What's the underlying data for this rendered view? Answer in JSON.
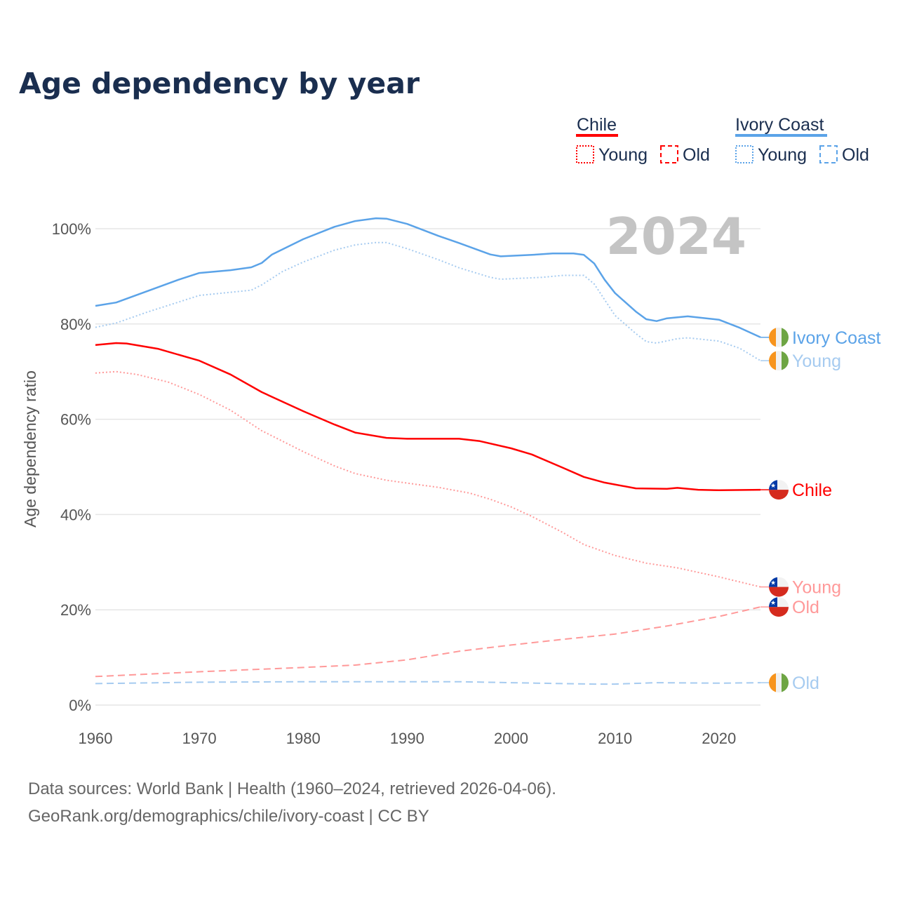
{
  "title": "Age dependency by year",
  "year_label": "2024",
  "legend": {
    "groups": [
      {
        "name": "Chile",
        "color": "#ff0000",
        "young": "Young",
        "old": "Old"
      },
      {
        "name": "Ivory Coast",
        "color": "#5ba3e8",
        "young": "Young",
        "old": "Old"
      }
    ]
  },
  "footer": {
    "line1": "Data sources: World Bank | Health (1960–2024, retrieved 2026-04-06).",
    "line2": "GeoRank.org/demographics/chile/ivory-coast | CC BY"
  },
  "chart_data": {
    "type": "line",
    "title": "Age dependency by year",
    "xlabel": "",
    "ylabel": "Age dependency ratio",
    "xlim": [
      1960,
      2024
    ],
    "ylim": [
      0,
      100
    ],
    "x_ticks": [
      "1960",
      "1970",
      "1980",
      "1990",
      "2000",
      "2010",
      "2020"
    ],
    "y_ticks": [
      "0%",
      "20%",
      "40%",
      "60%",
      "80%",
      "100%"
    ],
    "series": [
      {
        "name": "Ivory Coast",
        "end_label": "Ivory Coast",
        "country": "ivory",
        "color": "#5ba3e8",
        "style": "solid",
        "x": [
          1960,
          1962,
          1965,
          1968,
          1970,
          1973,
          1975,
          1976,
          1977,
          1980,
          1983,
          1985,
          1987,
          1988,
          1990,
          1993,
          1995,
          1998,
          1999,
          2002,
          2004,
          2006,
          2007,
          2008,
          2009,
          2010,
          2012,
          2013,
          2014,
          2015,
          2017,
          2020,
          2022,
          2024
        ],
        "y": [
          83.8,
          84.5,
          86.9,
          89.3,
          90.7,
          91.3,
          91.9,
          92.8,
          94.6,
          97.8,
          100.4,
          101.6,
          102.2,
          102.1,
          101,
          98.5,
          97,
          94.6,
          94.2,
          94.5,
          94.8,
          94.8,
          94.5,
          92.7,
          89.3,
          86.5,
          82.6,
          81.0,
          80.6,
          81.2,
          81.6,
          80.9,
          79.2,
          77.2
        ]
      },
      {
        "name": "Ivory Coast Young",
        "end_label": "Young",
        "country": "ivory",
        "color": "#a6cbf0",
        "style": "dotted",
        "x": [
          1960,
          1962,
          1965,
          1970,
          1975,
          1976,
          1978,
          1980,
          1983,
          1985,
          1987,
          1988,
          1990,
          1993,
          1995,
          1998,
          1999,
          2003,
          2005,
          2007,
          2008,
          2010,
          2012,
          2013,
          2014,
          2016,
          2017,
          2020,
          2022,
          2024
        ],
        "y": [
          79.3,
          80.2,
          82.5,
          86,
          87.1,
          88.2,
          91,
          93,
          95.5,
          96.6,
          97.1,
          97.1,
          95.8,
          93.5,
          91.8,
          89.8,
          89.4,
          89.8,
          90.2,
          90.2,
          88.4,
          81.8,
          78,
          76.3,
          76,
          76.9,
          77.1,
          76.4,
          74.9,
          72.3
        ]
      },
      {
        "name": "Chile",
        "end_label": "Chile",
        "country": "chile",
        "color": "#ff0000",
        "style": "solid",
        "x": [
          1960,
          1962,
          1963,
          1966,
          1970,
          1973,
          1976,
          1980,
          1983,
          1985,
          1988,
          1990,
          1995,
          1997,
          2000,
          2002,
          2005,
          2007,
          2009,
          2012,
          2015,
          2016,
          2018,
          2020,
          2024
        ],
        "y": [
          75.6,
          76.0,
          75.9,
          74.8,
          72.3,
          69.4,
          65.7,
          61.7,
          58.9,
          57.2,
          56.1,
          55.9,
          55.9,
          55.4,
          53.9,
          52.6,
          49.8,
          47.9,
          46.7,
          45.5,
          45.4,
          45.6,
          45.2,
          45.1,
          45.2
        ]
      },
      {
        "name": "Chile Young",
        "end_label": "Young",
        "country": "chile",
        "color": "#ff9999",
        "style": "dotted",
        "x": [
          1960,
          1962,
          1964,
          1967,
          1970,
          1973,
          1976,
          1980,
          1983,
          1985,
          1988,
          1990,
          1993,
          1996,
          1998,
          2000,
          2002,
          2005,
          2007,
          2010,
          2013,
          2016,
          2020,
          2024
        ],
        "y": [
          69.7,
          70,
          69.4,
          67.8,
          65.2,
          61.9,
          57.6,
          53.2,
          50.2,
          48.6,
          47.2,
          46.6,
          45.7,
          44.5,
          43.2,
          41.6,
          39.6,
          36.2,
          33.7,
          31.4,
          29.8,
          28.8,
          26.9,
          24.8
        ]
      },
      {
        "name": "Chile Old",
        "end_label": "Old",
        "country": "chile",
        "color": "#ff9999",
        "style": "dashed",
        "x": [
          1960,
          1970,
          1980,
          1985,
          1990,
          1995,
          2000,
          2005,
          2010,
          2015,
          2020,
          2024
        ],
        "y": [
          6.0,
          7.0,
          7.9,
          8.4,
          9.5,
          11.3,
          12.6,
          13.8,
          14.9,
          16.6,
          18.6,
          20.6
        ]
      },
      {
        "name": "Ivory Coast Old",
        "end_label": "Old",
        "country": "ivory",
        "color": "#a6cbf0",
        "style": "dashed",
        "x": [
          1960,
          1970,
          1980,
          1990,
          1995,
          2000,
          2005,
          2008,
          2010,
          2014,
          2020,
          2024
        ],
        "y": [
          4.5,
          4.8,
          4.9,
          4.9,
          4.9,
          4.7,
          4.5,
          4.4,
          4.4,
          4.7,
          4.6,
          4.7
        ]
      }
    ]
  }
}
